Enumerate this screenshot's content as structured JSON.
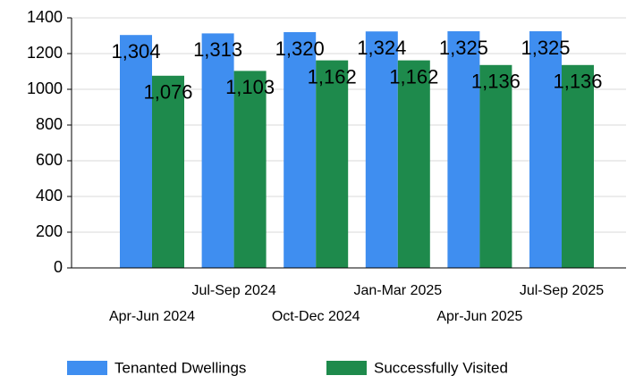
{
  "chart_data": {
    "type": "bar",
    "categories": [
      "Apr-Jun 2024",
      "Jul-Sep 2024",
      "Oct-Dec 2024",
      "Jan-Mar 2025",
      "Apr-Jun 2025",
      "Jul-Sep 2025"
    ],
    "series": [
      {
        "name": "Tenanted Dwellings",
        "color": "#3f8ef0",
        "values": [
          1304,
          1313,
          1320,
          1324,
          1325,
          1325
        ],
        "value_labels": [
          "1,304",
          "1,313",
          "1,320",
          "1,324",
          "1,325",
          "1,325"
        ]
      },
      {
        "name": "Successfully Visited",
        "color": "#1e8a4c",
        "values": [
          1076,
          1103,
          1162,
          1162,
          1136,
          1136
        ],
        "value_labels": [
          "1,076",
          "1,103",
          "1,162",
          "1,162",
          "1,136",
          "1,136"
        ]
      }
    ],
    "ylim": [
      0,
      1400
    ],
    "yticks": [
      0,
      200,
      400,
      600,
      800,
      1000,
      1200,
      1400
    ],
    "grid": true,
    "legend": "bottom"
  }
}
